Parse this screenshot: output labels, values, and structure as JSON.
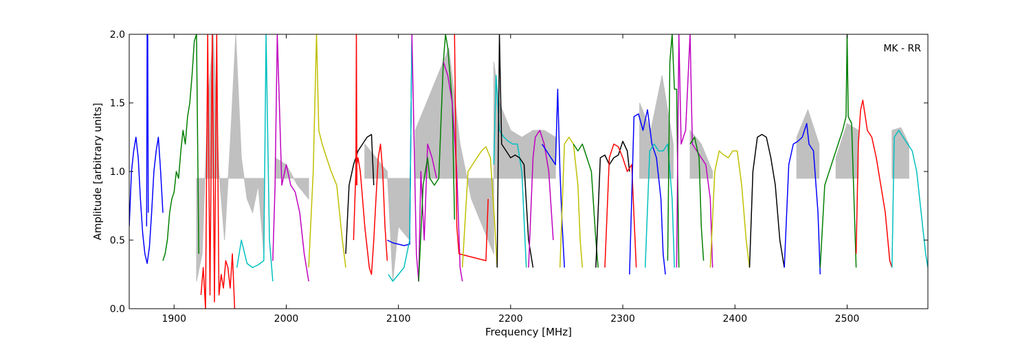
{
  "chart_data": {
    "type": "line",
    "title": "",
    "annotation": "MK - RR",
    "xlabel": "Frequency [MHz]",
    "ylabel": "Amplitude [arbitrary units]",
    "xlim": [
      1860,
      2572
    ],
    "ylim": [
      0,
      2.0
    ],
    "xticks": [
      1900,
      2000,
      2100,
      2200,
      2300,
      2400,
      2500
    ],
    "xtick_labels": [
      "1900",
      "2000",
      "2100",
      "2200",
      "2300",
      "2400",
      "2500"
    ],
    "yticks": [
      0.0,
      0.5,
      1.0,
      1.5,
      2.0
    ],
    "ytick_labels": [
      "0.0",
      "0.5",
      "1.0",
      "1.5",
      "2.0"
    ],
    "grid": false,
    "colors": {
      "envelope": "#c0c0c0",
      "blue": "#0000ff",
      "green": "#007f00",
      "red": "#ff0000",
      "cyan": "#00bfbf",
      "magenta": "#bf00bf",
      "yellow": "#bfbf00",
      "black": "#000000"
    },
    "envelope": [
      {
        "x": [
          1920,
          1925,
          1930,
          1935,
          1940,
          1945,
          1950,
          1955,
          1960,
          1965,
          1970,
          1975,
          1980
        ],
        "y": [
          0.2,
          0.4,
          1.5,
          2.0,
          1.0,
          0.5,
          1.2,
          2.0,
          1.1,
          0.8,
          0.7,
          0.9,
          0.4
        ]
      },
      {
        "x": [
          1990,
          2000,
          2010,
          2020
        ],
        "y": [
          1.1,
          1.05,
          0.9,
          0.8
        ]
      },
      {
        "x": [
          2070,
          2080,
          2090,
          2095,
          2100,
          2110
        ],
        "y": [
          1.2,
          1.1,
          1.0,
          0.2,
          0.6,
          0.5
        ]
      },
      {
        "x": [
          2115,
          2125,
          2135,
          2145,
          2155,
          2165,
          2175,
          2185
        ],
        "y": [
          1.3,
          1.5,
          1.7,
          1.9,
          1.2,
          0.8,
          0.6,
          0.4
        ]
      },
      {
        "x": [
          2185,
          2190,
          2200,
          2210,
          2220,
          2230,
          2240
        ],
        "y": [
          1.8,
          1.5,
          1.3,
          1.25,
          1.3,
          1.3,
          1.25
        ]
      },
      {
        "x": [
          2315,
          2325,
          2335,
          2345
        ],
        "y": [
          1.5,
          1.3,
          1.7,
          1.2
        ]
      },
      {
        "x": [
          2360,
          2370,
          2380
        ],
        "y": [
          1.3,
          1.2,
          1.0
        ]
      },
      {
        "x": [
          2455,
          2465,
          2475
        ],
        "y": [
          1.25,
          1.45,
          1.2
        ]
      },
      {
        "x": [
          2490,
          2500,
          2510
        ],
        "y": [
          1.1,
          1.35,
          1.3
        ]
      },
      {
        "x": [
          2540,
          2548,
          2555
        ],
        "y": [
          1.3,
          1.32,
          1.2
        ]
      }
    ],
    "series": [
      {
        "color": "blue",
        "x": [
          1860,
          1862,
          1864,
          1866,
          1868,
          1870,
          1872,
          1874,
          1876,
          1878,
          1880,
          1882,
          1884,
          1886,
          1888,
          1890
        ],
        "y": [
          0.6,
          1.0,
          1.15,
          1.25,
          1.1,
          0.8,
          0.55,
          0.4,
          0.33,
          0.45,
          0.7,
          1.0,
          1.15,
          1.25,
          1.0,
          0.7
        ]
      },
      {
        "color": "blue",
        "x": [
          1875.5,
          1876,
          1876.5,
          1877
        ],
        "y": [
          0.6,
          2.0,
          2.0,
          0.7
        ]
      },
      {
        "color": "green",
        "x": [
          1890,
          1892,
          1894,
          1896,
          1898,
          1900,
          1902,
          1904,
          1906,
          1908,
          1910,
          1912,
          1914,
          1916,
          1918,
          1920,
          1922
        ],
        "y": [
          0.35,
          0.4,
          0.5,
          0.7,
          0.8,
          0.85,
          1.0,
          0.95,
          1.15,
          1.3,
          1.2,
          1.4,
          1.5,
          1.7,
          1.95,
          2.0,
          0.4
        ]
      },
      {
        "color": "red",
        "x": [
          1924,
          1926,
          1928,
          1930,
          1932,
          1934,
          1936,
          1938,
          1940,
          1942,
          1944,
          1946,
          1948,
          1950,
          1952,
          1954
        ],
        "y": [
          0.1,
          0.3,
          0.0,
          2.0,
          0.1,
          2.0,
          0.05,
          2.0,
          0.1,
          0.25,
          0.15,
          0.35,
          0.3,
          0.15,
          0.4,
          0.0
        ]
      },
      {
        "color": "cyan",
        "x": [
          1956,
          1960,
          1965,
          1970,
          1975,
          1980,
          1982,
          1985,
          1988
        ],
        "y": [
          0.3,
          0.5,
          0.33,
          0.3,
          0.32,
          0.35,
          2.0,
          0.5,
          0.2
        ]
      },
      {
        "color": "magenta",
        "x": [
          1988,
          1990,
          1992,
          1996,
          2000,
          2004,
          2008,
          2012,
          2016,
          2020
        ],
        "y": [
          0.35,
          0.9,
          2.0,
          0.9,
          1.05,
          0.9,
          0.85,
          0.7,
          0.4,
          0.2
        ]
      },
      {
        "color": "yellow",
        "x": [
          2020,
          2024,
          2027,
          2029,
          2032,
          2036,
          2040,
          2045,
          2050,
          2053
        ],
        "y": [
          0.3,
          1.0,
          2.0,
          1.3,
          1.2,
          1.1,
          1.0,
          0.9,
          0.5,
          0.3
        ]
      },
      {
        "color": "black",
        "x": [
          2053,
          2056,
          2060,
          2064,
          2068,
          2072,
          2076,
          2078
        ],
        "y": [
          0.4,
          0.9,
          1.05,
          1.15,
          1.2,
          1.25,
          1.27,
          0.9
        ]
      },
      {
        "color": "red",
        "x": [
          2060,
          2062,
          2064,
          2066,
          2068,
          2070,
          2072,
          2074,
          2076,
          2078,
          2080,
          2082,
          2084,
          2086,
          2088,
          2090
        ],
        "y": [
          0.5,
          1.0,
          1.1,
          1.0,
          0.8,
          0.6,
          0.45,
          0.3,
          0.25,
          0.5,
          0.8,
          1.1,
          1.2,
          1.0,
          0.6,
          0.35
        ]
      },
      {
        "color": "red",
        "x": [
          2062,
          2062.5,
          2063
        ],
        "y": [
          0.9,
          2.0,
          0.9
        ]
      },
      {
        "color": "blue",
        "x": [
          2090,
          2095,
          2100,
          2105,
          2110,
          2112
        ],
        "y": [
          0.5,
          0.48,
          0.47,
          0.46,
          0.47,
          2.0
        ]
      },
      {
        "color": "cyan",
        "x": [
          2091,
          2095,
          2100,
          2105,
          2110,
          2112
        ],
        "y": [
          0.25,
          0.2,
          0.25,
          0.3,
          0.5,
          2.0
        ]
      },
      {
        "color": "magenta",
        "x": [
          2112,
          2116,
          2118,
          2120,
          2123,
          2126,
          2130,
          2134
        ],
        "y": [
          2.0,
          0.4,
          0.2,
          1.0,
          0.5,
          1.2,
          1.1,
          0.95
        ]
      },
      {
        "color": "green",
        "x": [
          2118,
          2122,
          2126,
          2128,
          2132,
          2136,
          2140,
          2142,
          2144,
          2148,
          2150
        ],
        "y": [
          0.2,
          0.9,
          1.1,
          0.95,
          0.9,
          0.95,
          1.8,
          2.0,
          1.9,
          1.5,
          0.65
        ]
      },
      {
        "color": "magenta",
        "x": [
          2140,
          2144,
          2148,
          2152,
          2155,
          2157
        ],
        "y": [
          1.8,
          1.7,
          1.5,
          1.0,
          0.3,
          0.2
        ]
      },
      {
        "color": "red",
        "x": [
          2150,
          2152,
          2154,
          2178,
          2180
        ],
        "y": [
          2.0,
          0.6,
          0.4,
          0.35,
          0.8
        ]
      },
      {
        "color": "yellow",
        "x": [
          2157,
          2162,
          2166,
          2170,
          2174,
          2178,
          2182,
          2186,
          2188
        ],
        "y": [
          0.3,
          1.0,
          1.05,
          1.1,
          1.15,
          1.18,
          1.1,
          0.6,
          0.3
        ]
      },
      {
        "color": "cyan",
        "x": [
          2185,
          2187,
          2190,
          2194,
          2198,
          2202,
          2206,
          2210,
          2214
        ],
        "y": [
          1.05,
          1.7,
          1.3,
          1.25,
          1.22,
          1.2,
          1.2,
          1.0,
          0.3
        ]
      },
      {
        "color": "black",
        "x": [
          2188,
          2190,
          2192,
          2196,
          2200,
          2204,
          2208,
          2212,
          2216,
          2220
        ],
        "y": [
          0.3,
          2.0,
          1.2,
          1.15,
          1.1,
          1.12,
          1.1,
          1.05,
          0.5,
          0.3
        ]
      },
      {
        "color": "magenta",
        "x": [
          2216,
          2220,
          2222,
          2226,
          2230,
          2234,
          2238
        ],
        "y": [
          0.3,
          1.1,
          1.25,
          1.3,
          1.2,
          1.0,
          0.5
        ]
      },
      {
        "color": "blue",
        "x": [
          2228,
          2232,
          2236,
          2240,
          2242,
          2244,
          2246,
          2248
        ],
        "y": [
          1.2,
          1.15,
          1.1,
          1.05,
          1.6,
          1.0,
          0.6,
          0.3
        ]
      },
      {
        "color": "yellow",
        "x": [
          2244,
          2248,
          2252,
          2256,
          2260,
          2262,
          2264
        ],
        "y": [
          0.3,
          1.2,
          1.25,
          1.2,
          0.9,
          0.5,
          0.3
        ]
      },
      {
        "color": "green",
        "x": [
          2256,
          2260,
          2264,
          2268,
          2272,
          2276,
          2278
        ],
        "y": [
          1.2,
          1.15,
          1.2,
          1.1,
          1.0,
          0.5,
          0.3
        ]
      },
      {
        "color": "black",
        "x": [
          2276,
          2280,
          2284,
          2288,
          2292,
          2296,
          2300,
          2304,
          2306
        ],
        "y": [
          0.3,
          1.1,
          1.12,
          1.05,
          1.1,
          1.12,
          1.22,
          1.15,
          1.0
        ]
      },
      {
        "color": "red",
        "x": [
          2284,
          2288,
          2292,
          2296,
          2300,
          2304,
          2308,
          2312
        ],
        "y": [
          0.3,
          1.1,
          1.2,
          1.18,
          1.1,
          1.0,
          1.05,
          0.3
        ]
      },
      {
        "color": "blue",
        "x": [
          2306,
          2310,
          2314,
          2318,
          2322,
          2326,
          2330,
          2334,
          2336,
          2338
        ],
        "y": [
          0.25,
          1.4,
          1.42,
          1.3,
          1.45,
          1.2,
          1.1,
          0.8,
          0.4,
          0.25
        ]
      },
      {
        "color": "cyan",
        "x": [
          2320,
          2324,
          2328,
          2332,
          2336,
          2340,
          2344,
          2346
        ],
        "y": [
          0.3,
          1.15,
          1.2,
          1.15,
          1.15,
          1.2,
          0.8,
          0.3
        ]
      },
      {
        "color": "green",
        "x": [
          2340,
          2342,
          2344,
          2346,
          2348,
          2350
        ],
        "y": [
          0.35,
          1.8,
          2.0,
          1.6,
          1.6,
          0.3
        ]
      },
      {
        "color": "magenta",
        "x": [
          2348,
          2350,
          2352,
          2356,
          2360,
          2362,
          2366,
          2370,
          2374,
          2378,
          2380
        ],
        "y": [
          0.3,
          2.0,
          1.2,
          1.3,
          2.0,
          1.2,
          1.15,
          1.1,
          1.05,
          0.8,
          0.3
        ]
      },
      {
        "color": "green",
        "x": [
          2360,
          2364,
          2368,
          2370,
          2372
        ],
        "y": [
          1.2,
          1.25,
          1.1,
          0.6,
          0.35
        ]
      },
      {
        "color": "yellow",
        "x": [
          2378,
          2382,
          2386,
          2390,
          2394,
          2398,
          2402,
          2406,
          2410,
          2413
        ],
        "y": [
          0.3,
          1.0,
          1.15,
          1.12,
          1.1,
          1.15,
          1.15,
          0.9,
          0.5,
          0.3
        ]
      },
      {
        "color": "black",
        "x": [
          2413,
          2416,
          2420,
          2424,
          2428,
          2432,
          2436,
          2440,
          2444
        ],
        "y": [
          0.3,
          1.0,
          1.25,
          1.27,
          1.25,
          1.1,
          0.9,
          0.5,
          0.3
        ]
      },
      {
        "color": "blue",
        "x": [
          2444,
          2448,
          2452,
          2456,
          2460,
          2464,
          2466,
          2470,
          2474,
          2476
        ],
        "y": [
          0.3,
          1.05,
          1.2,
          1.22,
          1.25,
          1.35,
          1.2,
          1.15,
          0.7,
          0.25
        ]
      },
      {
        "color": "green",
        "x": [
          2476,
          2480,
          2484,
          2488,
          2492,
          2496,
          2499,
          2500,
          2501,
          2504,
          2508
        ],
        "y": [
          0.3,
          0.9,
          1.0,
          1.1,
          1.2,
          1.3,
          1.4,
          2.0,
          1.4,
          1.35,
          0.3
        ]
      },
      {
        "color": "red",
        "x": [
          2508,
          2510,
          2512,
          2514,
          2518,
          2522,
          2526,
          2530,
          2534,
          2538,
          2540
        ],
        "y": [
          0.4,
          1.2,
          1.45,
          1.52,
          1.3,
          1.25,
          1.1,
          0.9,
          0.7,
          0.35,
          0.3
        ]
      },
      {
        "color": "cyan",
        "x": [
          2540,
          2542,
          2546,
          2550,
          2554,
          2558,
          2562,
          2566,
          2570,
          2572
        ],
        "y": [
          0.3,
          1.25,
          1.3,
          1.25,
          1.2,
          1.15,
          1.0,
          0.7,
          0.4,
          0.3
        ]
      }
    ]
  }
}
